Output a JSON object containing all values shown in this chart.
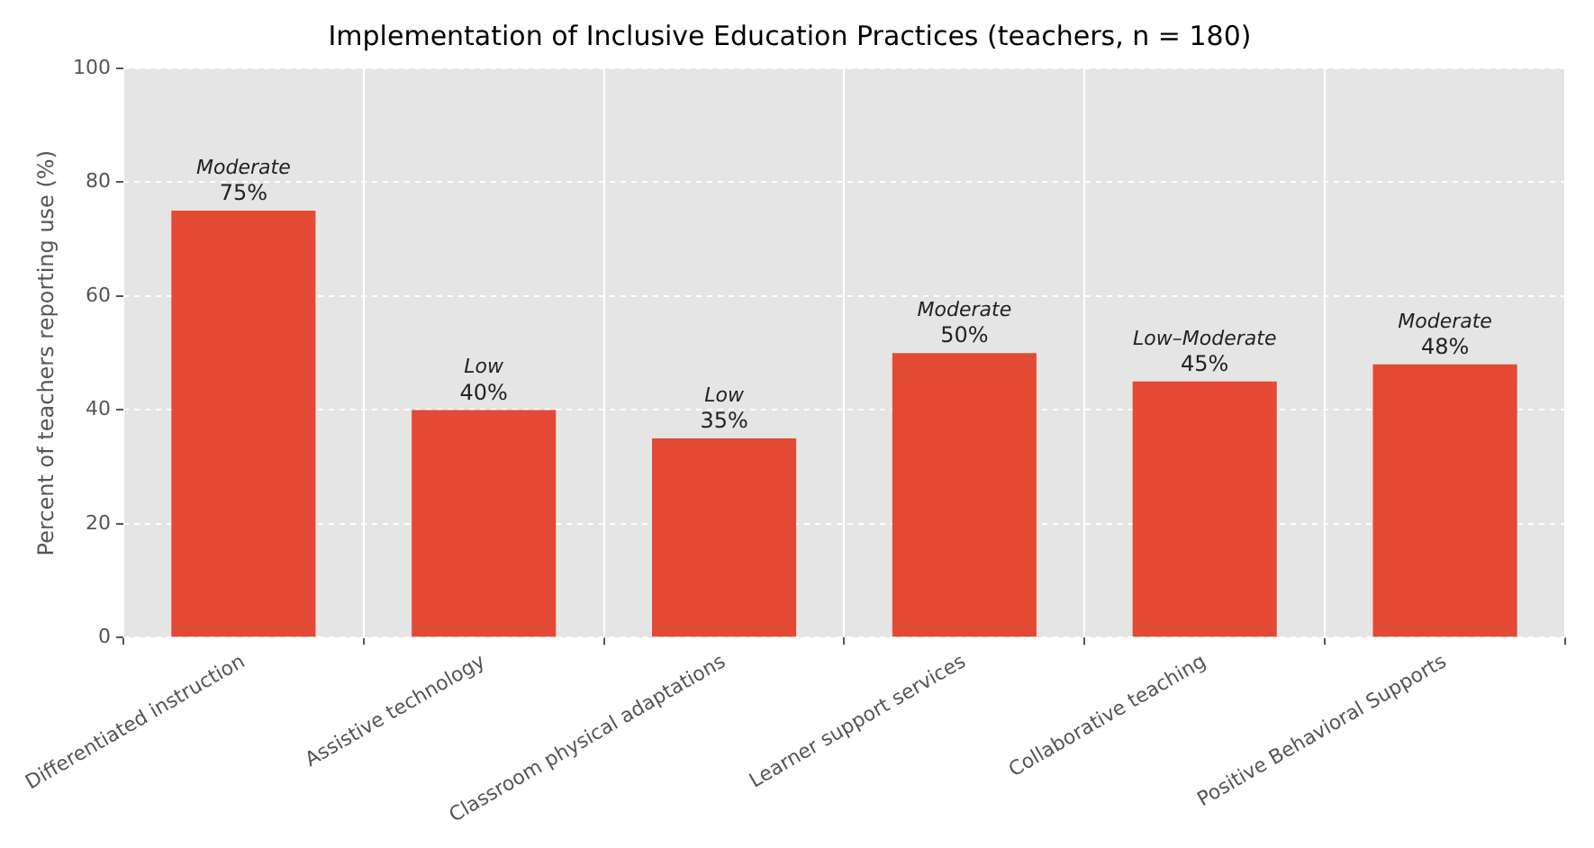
{
  "chart_data": {
    "type": "bar",
    "title": "Implementation of Inclusive Education Practices (teachers, n = 180)",
    "ylabel": "Percent of teachers reporting use (%)",
    "categories": [
      "Differentiated instruction",
      "Assistive technology",
      "Classroom physical adaptations",
      "Learner support services",
      "Collaborative teaching",
      "Positive Behavioral Supports"
    ],
    "values": [
      75,
      40,
      35,
      50,
      45,
      48
    ],
    "color": "#e24a33",
    "value_labels": [
      "75%",
      "40%",
      "35%",
      "50%",
      "45%",
      "48%"
    ],
    "annotations": [
      {
        "text": "Moderate",
        "x": "Differentiated instruction",
        "y": 75
      },
      {
        "text": "Low",
        "x": "Assistive technology",
        "y": 40
      },
      {
        "text": "Low",
        "x": "Classroom physical adaptations",
        "y": 35
      },
      {
        "text": "Moderate",
        "x": "Learner support services",
        "y": 50
      },
      {
        "text": "Low–Moderate",
        "x": "Collaborative teaching",
        "y": 45
      },
      {
        "text": "Moderate",
        "x": "Positive Behavioral Supports",
        "y": 48
      }
    ],
    "ylim": [
      0,
      100
    ],
    "yticks": [
      0,
      20,
      40,
      60,
      80,
      100
    ],
    "grid": true,
    "legend": false
  }
}
